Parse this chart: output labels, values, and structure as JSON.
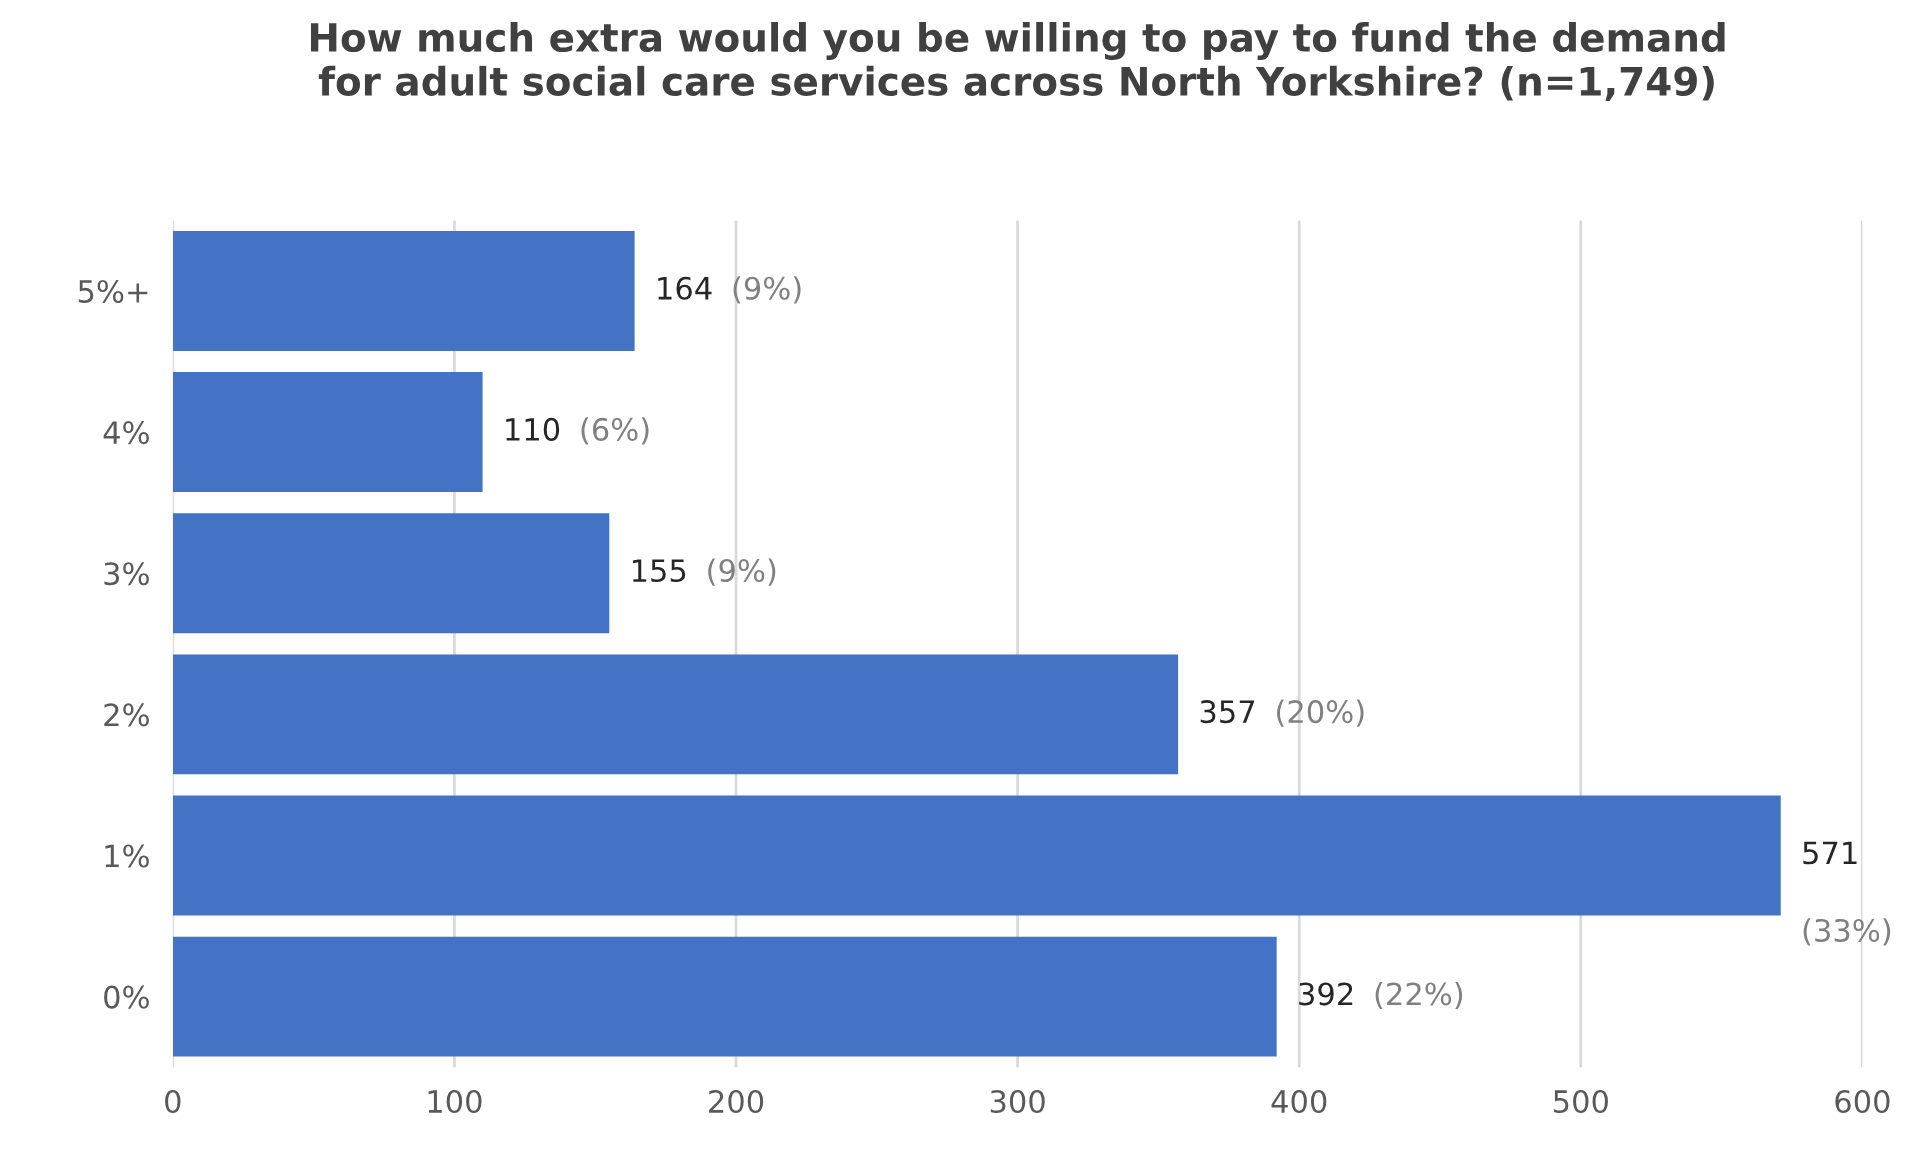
{
  "chart_data": {
    "type": "bar",
    "orientation": "horizontal",
    "title": "How much extra would you be willing to pay to fund the demand\nfor adult social care services across North Yorkshire? (n=1,749)",
    "categories": [
      "5%+",
      "4%",
      "3%",
      "2%",
      "1%",
      "0%"
    ],
    "values": [
      164,
      110,
      155,
      357,
      571,
      392
    ],
    "value_labels": [
      "164 (9%)",
      "110 (6%)",
      "155 (9%)",
      "357 (20%)",
      "571 (33%)",
      "392 (22%)"
    ],
    "color": "#4472c4",
    "xlim": [
      0,
      600
    ],
    "xticks": [
      0,
      100,
      200,
      300,
      400,
      500,
      600
    ],
    "grid": "x"
  }
}
